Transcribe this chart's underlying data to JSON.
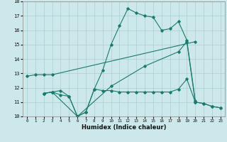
{
  "xlabel": "Humidex (Indice chaleur)",
  "bg_color": "#cce8ea",
  "line_color": "#1a7a6e",
  "grid_color": "#aacfd2",
  "xlim": [
    -0.5,
    23.5
  ],
  "ylim": [
    10,
    18
  ],
  "xticks": [
    0,
    1,
    2,
    3,
    4,
    5,
    6,
    7,
    8,
    9,
    10,
    11,
    12,
    13,
    14,
    15,
    16,
    17,
    18,
    19,
    20,
    21,
    22,
    23
  ],
  "yticks": [
    10,
    11,
    12,
    13,
    14,
    15,
    16,
    17,
    18
  ],
  "lines": [
    {
      "x": [
        0,
        1,
        2,
        3,
        20
      ],
      "y": [
        12.8,
        12.9,
        12.9,
        12.9,
        15.2
      ]
    },
    {
      "x": [
        2,
        3,
        4,
        5,
        6,
        7,
        8,
        9,
        10,
        11,
        12,
        13,
        14,
        15,
        16,
        17,
        18,
        19,
        20
      ],
      "y": [
        11.6,
        11.7,
        11.8,
        11.4,
        10.0,
        10.3,
        11.9,
        13.2,
        15.0,
        16.3,
        17.5,
        17.2,
        17.0,
        16.9,
        16.0,
        16.1,
        16.6,
        15.3,
        11.1
      ]
    },
    {
      "x": [
        2,
        3,
        4,
        5,
        6,
        7,
        8,
        9,
        10,
        11,
        12,
        13,
        14,
        15,
        16,
        17,
        18,
        19,
        20,
        21,
        22,
        23
      ],
      "y": [
        11.6,
        11.7,
        11.5,
        11.4,
        10.0,
        10.3,
        11.9,
        11.8,
        11.8,
        11.7,
        11.7,
        11.7,
        11.7,
        11.7,
        11.7,
        11.7,
        11.9,
        12.6,
        11.0,
        10.9,
        10.7,
        10.6
      ]
    },
    {
      "x": [
        2,
        3,
        6,
        10,
        14,
        18,
        19,
        20,
        21,
        22,
        23
      ],
      "y": [
        11.6,
        11.7,
        10.0,
        12.1,
        13.5,
        14.5,
        15.2,
        11.0,
        10.9,
        10.7,
        10.6
      ]
    }
  ]
}
